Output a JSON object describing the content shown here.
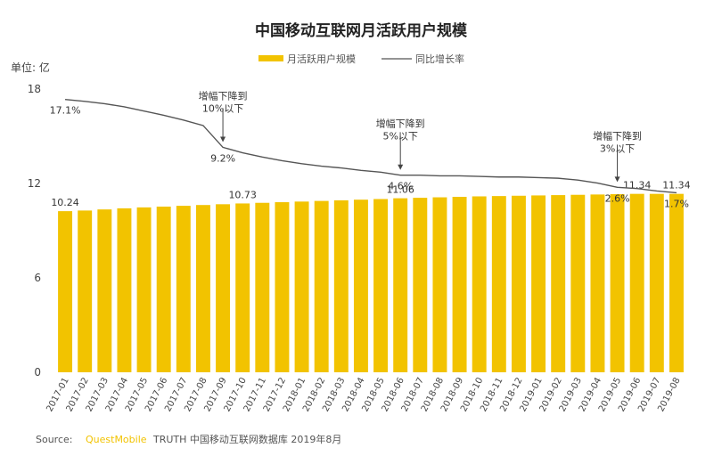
{
  "chart_data": {
    "type": "bar",
    "title": "中国移动互联网月活跃用户规模",
    "unit_label": "单位: 亿",
    "ylim": [
      0,
      18
    ],
    "yticks": [
      "0",
      "6",
      "12",
      "18"
    ],
    "grid": false,
    "legend_position": "top-center",
    "colors": {
      "bar": "#f2c300",
      "line": "#555555"
    },
    "categories": [
      "2017-01",
      "2017-02",
      "2017-03",
      "2017-04",
      "2017-05",
      "2017-06",
      "2017-07",
      "2017-08",
      "2017-09",
      "2017-10",
      "2017-11",
      "2017-12",
      "2018-01",
      "2018-02",
      "2018-03",
      "2018-04",
      "2018-05",
      "2018-06",
      "2018-07",
      "2018-08",
      "2018-09",
      "2018-10",
      "2018-11",
      "2018-12",
      "2019-01",
      "2019-02",
      "2019-03",
      "2019-04",
      "2019-05",
      "2019-06",
      "2019-07",
      "2019-08"
    ],
    "series": [
      {
        "name": "月活跃用户规模",
        "kind": "bar",
        "values": [
          10.24,
          10.28,
          10.35,
          10.42,
          10.48,
          10.53,
          10.58,
          10.63,
          10.68,
          10.73,
          10.77,
          10.81,
          10.85,
          10.89,
          10.93,
          10.97,
          11.01,
          11.06,
          11.09,
          11.12,
          11.15,
          11.18,
          11.2,
          11.22,
          11.24,
          11.26,
          11.28,
          11.3,
          11.32,
          11.34,
          11.34,
          11.34
        ]
      },
      {
        "name": "同比增长率",
        "kind": "line",
        "unit": "%",
        "values": [
          17.1,
          16.8,
          16.4,
          15.9,
          15.2,
          14.5,
          13.7,
          12.8,
          9.2,
          8.3,
          7.6,
          7.0,
          6.5,
          6.1,
          5.8,
          5.4,
          5.1,
          4.6,
          4.6,
          4.5,
          4.5,
          4.4,
          4.3,
          4.3,
          4.2,
          4.1,
          3.8,
          3.3,
          2.6,
          2.4,
          2.0,
          1.7
        ]
      }
    ],
    "bar_labels": [
      {
        "index": 0,
        "text": "10.24"
      },
      {
        "index": 9,
        "text": "10.73"
      },
      {
        "index": 17,
        "text": "11.06"
      },
      {
        "index": 29,
        "text": "11.34"
      },
      {
        "index": 31,
        "text": "11.34"
      }
    ],
    "line_labels": [
      {
        "index": 0,
        "text": "17.1%"
      },
      {
        "index": 8,
        "text": "9.2%"
      },
      {
        "index": 17,
        "text": "4.6%"
      },
      {
        "index": 28,
        "text": "2.6%"
      },
      {
        "index": 31,
        "text": "1.7%"
      }
    ],
    "annotations": [
      {
        "index": 8,
        "lines": [
          "增幅下降到",
          "10%以下"
        ]
      },
      {
        "index": 17,
        "lines": [
          "增幅下降到",
          "5%以下"
        ]
      },
      {
        "index": 28,
        "lines": [
          "增幅下降到",
          "3%以下"
        ]
      }
    ],
    "source_prefix": "Source:",
    "source_brand": "QuestMobile",
    "source_text": "TRUTH 中国移动互联网数据库 2019年8月"
  }
}
